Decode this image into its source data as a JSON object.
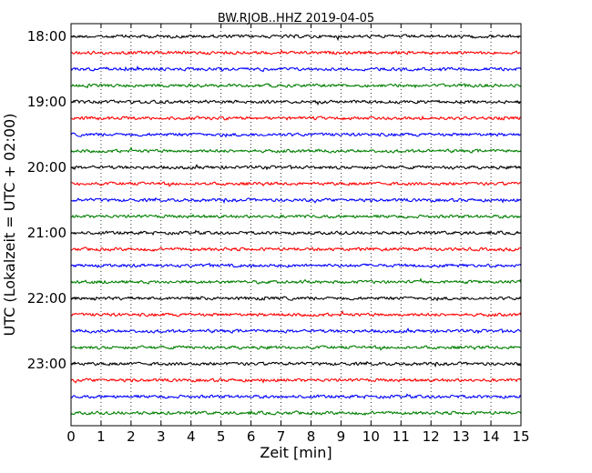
{
  "chart_data": {
    "type": "line",
    "title": "BW.RJOB..HHZ 2019-04-05",
    "xlabel": "Zeit  [min]",
    "ylabel": "UTC (Lokalzeit = UTC + 02:00)",
    "xlim": [
      0,
      15
    ],
    "x_ticks": [
      "0",
      "1",
      "2",
      "3",
      "4",
      "5",
      "6",
      "7",
      "8",
      "9",
      "10",
      "11",
      "12",
      "13",
      "14",
      "15"
    ],
    "y_tick_labels": [
      "18:00",
      "19:00",
      "20:00",
      "21:00",
      "22:00",
      "23:00"
    ],
    "trace_interval_minutes": 15,
    "trace_count": 24,
    "trace_colors": [
      "#000000",
      "#ff0000",
      "#0000ff",
      "#007f00"
    ],
    "grid": "vertical dotted lines at each minute"
  }
}
